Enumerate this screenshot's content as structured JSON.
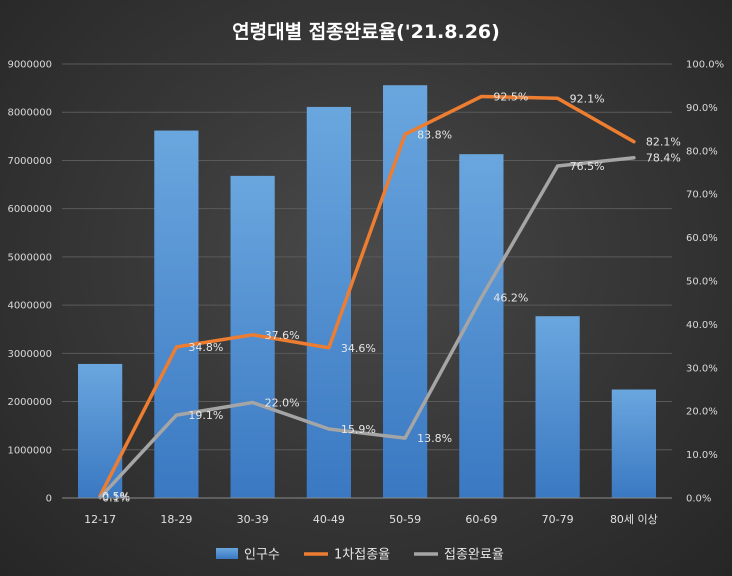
{
  "chart_data": {
    "type": "bar",
    "title": "연령대별 접종완료율('21.8.26)",
    "categories": [
      "12-17",
      "18-29",
      "30-39",
      "40-49",
      "50-59",
      "60-69",
      "70-79",
      "80세 이상"
    ],
    "series": [
      {
        "name": "인구수",
        "type": "bar",
        "axis": "left",
        "color": "#5b9bd5",
        "values": [
          2780000,
          7620000,
          6680000,
          8110000,
          8560000,
          7130000,
          3770000,
          2250000
        ]
      },
      {
        "name": "1차접종율",
        "type": "line",
        "axis": "right",
        "color": "#ed7d31",
        "values": [
          0.5,
          34.8,
          37.6,
          34.6,
          83.8,
          92.5,
          92.1,
          82.1
        ],
        "labels": [
          "0.5%",
          "34.8%",
          "37.6%",
          "34.6%",
          "83.8%",
          "92.5%",
          "92.1%",
          "82.1%"
        ]
      },
      {
        "name": "접종완료율",
        "type": "line",
        "axis": "right",
        "color": "#a5a5a5",
        "values": [
          0.1,
          19.1,
          22.0,
          15.9,
          13.8,
          46.2,
          76.5,
          78.4
        ],
        "labels": [
          "0.1%",
          "19.1%",
          "22.0%",
          "15.9%",
          "13.8%",
          "46.2%",
          "76.5%",
          "78.4%"
        ]
      }
    ],
    "y_left": {
      "min": 0,
      "max": 9000000,
      "step": 1000000,
      "ticks": [
        "0",
        "1000000",
        "2000000",
        "3000000",
        "4000000",
        "5000000",
        "6000000",
        "7000000",
        "8000000",
        "9000000"
      ]
    },
    "y_right": {
      "min": 0,
      "max": 100,
      "step": 10,
      "ticks": [
        "0.0%",
        "10.0%",
        "20.0%",
        "30.0%",
        "40.0%",
        "50.0%",
        "60.0%",
        "70.0%",
        "80.0%",
        "90.0%",
        "100.0%"
      ]
    },
    "legend_position": "bottom",
    "grid": true
  }
}
